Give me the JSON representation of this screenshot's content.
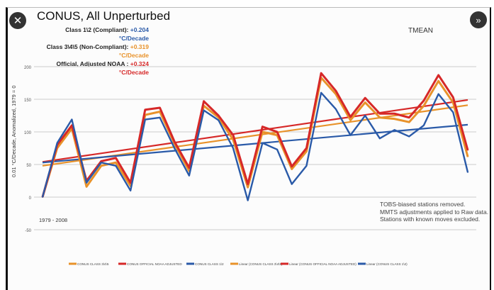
{
  "header": {
    "title": "CONUS, All Unperturbed",
    "series_label": "TMEAN",
    "close_icon": "close-icon",
    "next_icon": "double-chevron-right-icon"
  },
  "stats": [
    {
      "label": "Class 1\\2 (Compliant): ",
      "value": "+0.204 °C/Decade",
      "color": "#2a5aa8"
    },
    {
      "label": "Class 3\\4\\5 (Non-Compliant): ",
      "value": "+0.319 °C/Decade",
      "color": "#e8922a"
    },
    {
      "label": "Official, Adjusted NOAA : ",
      "value": "+0.324 °C/Decade",
      "color": "#d62828"
    }
  ],
  "notes": [
    "TOBS-biased stations removed.",
    "MMTS adjustments applied to Raw data.",
    "Stations with known moves excluded."
  ],
  "chart_data": {
    "type": "line",
    "title": "CONUS, All Unperturbed",
    "ylabel": "0.01 °C/Decade, Anomalized, 1979 = 0",
    "xlabel": "1979 - 2008",
    "x": [
      1979,
      1980,
      1981,
      1982,
      1983,
      1984,
      1985,
      1986,
      1987,
      1988,
      1989,
      1990,
      1991,
      1992,
      1993,
      1994,
      1995,
      1996,
      1997,
      1998,
      1999,
      2000,
      2001,
      2002,
      2003,
      2004,
      2005,
      2006,
      2007,
      2008
    ],
    "ylim": [
      -50,
      200
    ],
    "yticks": [
      "-50",
      "0",
      "50",
      "100",
      "150",
      "200"
    ],
    "grid": true,
    "legend_position": "bottom",
    "series": [
      {
        "name": "CONUS CLASS 3\\4\\5",
        "color": "#e8922a",
        "values": [
          0,
          75,
          105,
          16,
          48,
          53,
          17,
          126,
          131,
          82,
          40,
          140,
          122,
          88,
          15,
          100,
          95,
          43,
          70,
          183,
          158,
          118,
          145,
          122,
          120,
          115,
          140,
          178,
          145,
          62
        ]
      },
      {
        "name": "CONUS OFFICIAL NOAA ADJUSTED",
        "color": "#d62828",
        "values": [
          0,
          80,
          110,
          25,
          55,
          60,
          22,
          134,
          137,
          85,
          45,
          147,
          125,
          95,
          20,
          108,
          100,
          47,
          75,
          190,
          163,
          123,
          152,
          128,
          128,
          122,
          148,
          187,
          153,
          72
        ]
      },
      {
        "name": "CONUS CLASS 1\\2",
        "color": "#2a5aa8",
        "values": [
          0,
          83,
          119,
          22,
          53,
          48,
          10,
          119,
          122,
          75,
          33,
          133,
          118,
          75,
          -5,
          83,
          73,
          20,
          48,
          160,
          135,
          95,
          125,
          90,
          103,
          93,
          110,
          158,
          130,
          38
        ]
      }
    ],
    "trends": [
      {
        "name": "Linear (CONUS CLASS 3\\4\\5)",
        "color": "#e8922a",
        "start": 48,
        "end": 141
      },
      {
        "name": "Linear (CONUS OFFICIAL NOAA ADJUSTED)",
        "color": "#d62828",
        "start": 54,
        "end": 149
      },
      {
        "name": "Linear (CONUS CLASS 1\\2)",
        "color": "#2a5aa8",
        "start": 53,
        "end": 111
      }
    ]
  }
}
